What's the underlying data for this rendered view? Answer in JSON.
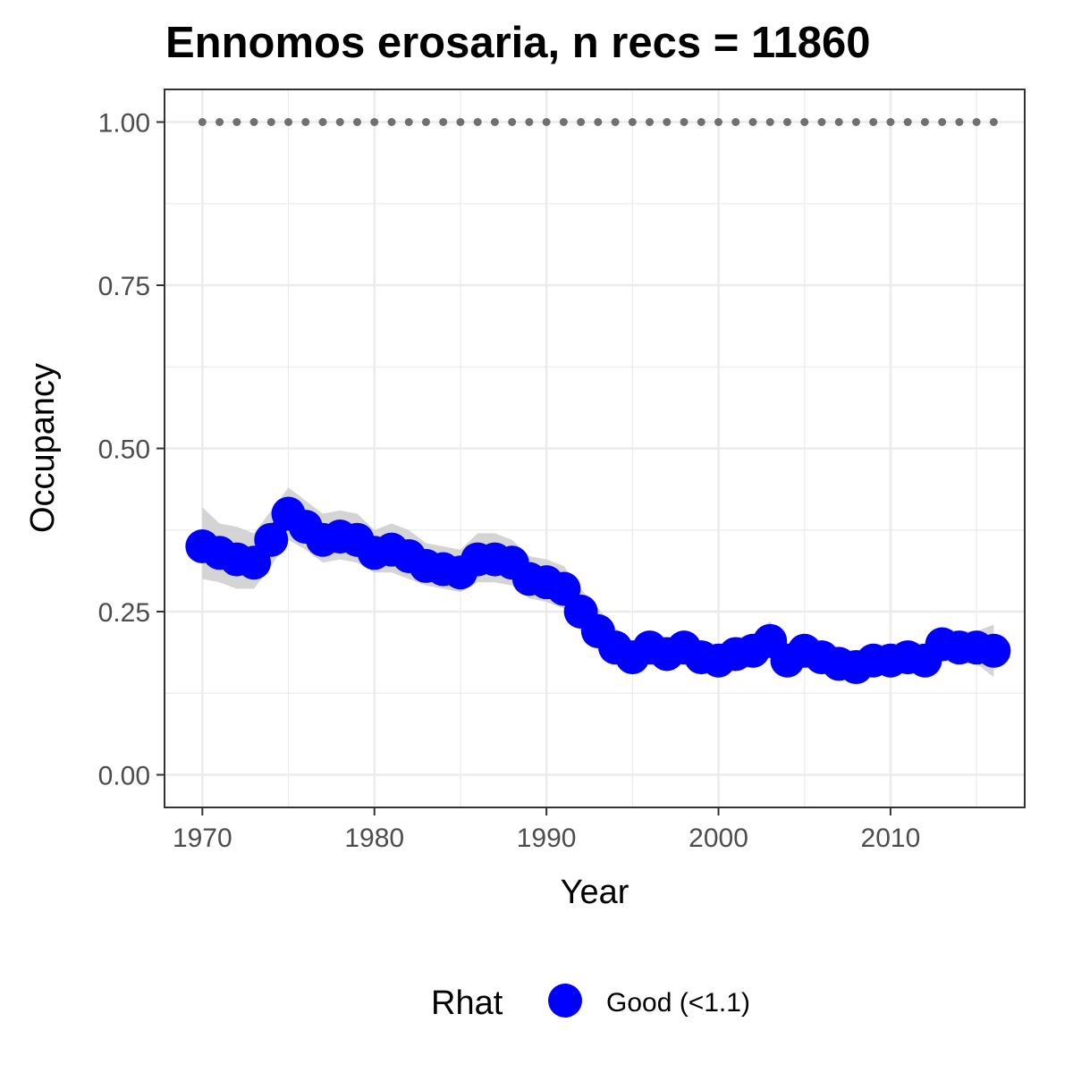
{
  "chart_data": {
    "type": "line",
    "title": "Ennomos erosaria, n recs = 11860",
    "xlabel": "Year",
    "ylabel": "Occupancy",
    "xlim": [
      1967.8,
      2017.8
    ],
    "ylim": [
      -0.05,
      1.05
    ],
    "x_ticks": [
      1970,
      1980,
      1990,
      2000,
      2010
    ],
    "x_tick_labels": [
      "1970",
      "1980",
      "1990",
      "2000",
      "2010"
    ],
    "y_ticks": [
      0,
      0.25,
      0.5,
      0.75,
      1.0
    ],
    "y_tick_labels": [
      "0.00",
      "0.25",
      "0.50",
      "0.75",
      "1.00"
    ],
    "grid": true,
    "legend": {
      "title": "Rhat",
      "placement": "bottom",
      "entries": [
        {
          "label": "Good (<1.1)",
          "color": "#0000ff"
        }
      ]
    },
    "colors": {
      "series": "#0000ff",
      "ribbon": "#cccccc",
      "reference": "#707070",
      "grid": "#ebebeb",
      "frame": "#333333"
    },
    "series": [
      {
        "name": "Good (<1.1)",
        "x": [
          1970,
          1971,
          1972,
          1973,
          1974,
          1975,
          1976,
          1977,
          1978,
          1979,
          1980,
          1981,
          1982,
          1983,
          1984,
          1985,
          1986,
          1987,
          1988,
          1989,
          1990,
          1991,
          1992,
          1993,
          1994,
          1995,
          1996,
          1997,
          1998,
          1999,
          2000,
          2001,
          2002,
          2003,
          2004,
          2005,
          2006,
          2007,
          2008,
          2009,
          2010,
          2011,
          2012,
          2013,
          2014,
          2015,
          2016
        ],
        "values": [
          0.35,
          0.34,
          0.33,
          0.325,
          0.36,
          0.4,
          0.38,
          0.36,
          0.365,
          0.36,
          0.34,
          0.345,
          0.335,
          0.32,
          0.315,
          0.31,
          0.33,
          0.33,
          0.325,
          0.3,
          0.295,
          0.285,
          0.25,
          0.22,
          0.195,
          0.18,
          0.195,
          0.185,
          0.195,
          0.18,
          0.175,
          0.185,
          0.19,
          0.205,
          0.175,
          0.19,
          0.18,
          0.17,
          0.165,
          0.175,
          0.175,
          0.18,
          0.175,
          0.2,
          0.195,
          0.195,
          0.19
        ],
        "lower": [
          0.3,
          0.295,
          0.285,
          0.285,
          0.32,
          0.36,
          0.345,
          0.325,
          0.33,
          0.325,
          0.31,
          0.31,
          0.3,
          0.29,
          0.285,
          0.28,
          0.295,
          0.295,
          0.29,
          0.27,
          0.265,
          0.255,
          0.22,
          0.19,
          0.17,
          0.16,
          0.17,
          0.16,
          0.17,
          0.16,
          0.155,
          0.16,
          0.165,
          0.18,
          0.155,
          0.165,
          0.155,
          0.15,
          0.145,
          0.155,
          0.155,
          0.16,
          0.155,
          0.175,
          0.17,
          0.17,
          0.15
        ],
        "upper": [
          0.41,
          0.385,
          0.38,
          0.37,
          0.405,
          0.44,
          0.42,
          0.4,
          0.405,
          0.4,
          0.375,
          0.385,
          0.375,
          0.355,
          0.35,
          0.345,
          0.37,
          0.37,
          0.36,
          0.335,
          0.33,
          0.32,
          0.285,
          0.255,
          0.225,
          0.205,
          0.22,
          0.21,
          0.22,
          0.205,
          0.2,
          0.21,
          0.215,
          0.235,
          0.2,
          0.215,
          0.205,
          0.195,
          0.19,
          0.2,
          0.2,
          0.205,
          0.2,
          0.225,
          0.22,
          0.22,
          0.23
        ]
      }
    ],
    "reference_line": {
      "y": 1.0,
      "x": [
        1970,
        2016
      ],
      "style": "dotted"
    }
  }
}
